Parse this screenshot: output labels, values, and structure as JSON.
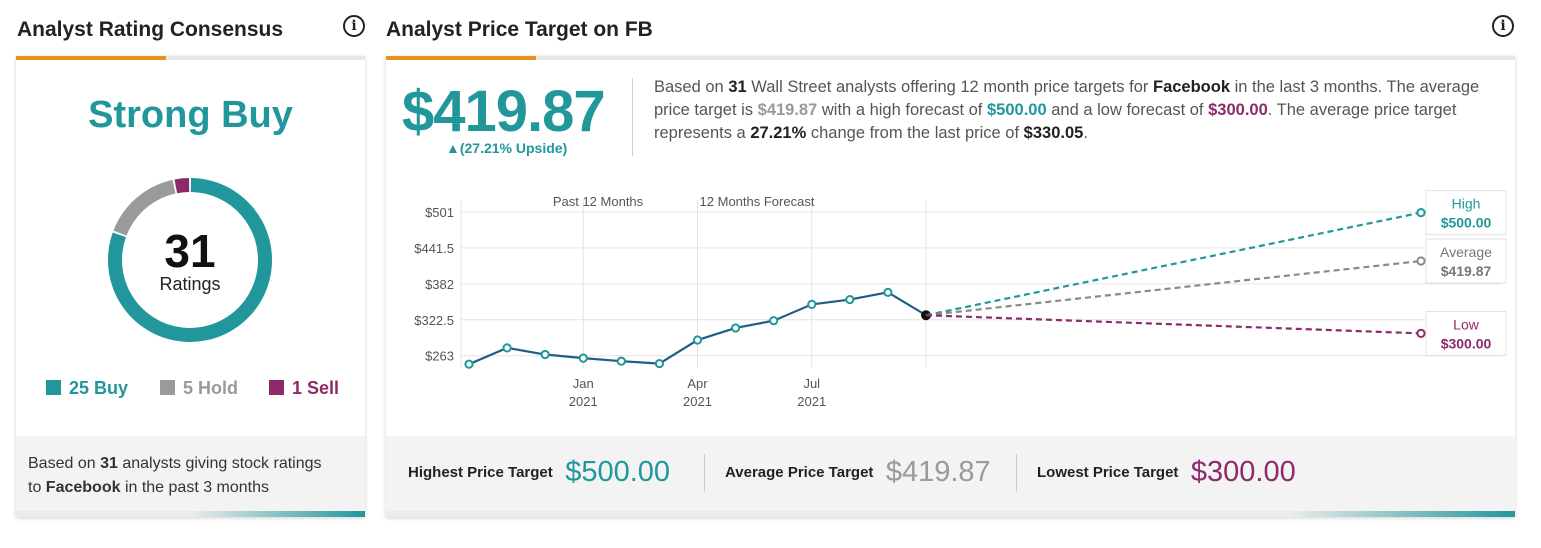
{
  "rating_panel": {
    "title": "Analyst Rating Consensus",
    "info_icon": "info-icon",
    "consensus": "Strong Buy",
    "total": "31",
    "total_label": "Ratings",
    "legend": {
      "buy": "25 Buy",
      "hold": "5 Hold",
      "sell": "1 Sell"
    },
    "counts": {
      "buy": 25,
      "hold": 5,
      "sell": 1
    },
    "colors": {
      "buy": "#21979c",
      "hold": "#9a9a9a",
      "sell": "#8d2a6b",
      "accent": "#e8921e"
    },
    "footer": {
      "prefix": "Based on",
      "count": "31",
      "middle": "analysts giving stock ratings",
      "to": "to",
      "company": "Facebook",
      "suffix": "in the past 3 months"
    }
  },
  "target_panel": {
    "title": "Analyst Price Target on FB",
    "info_icon": "info-icon",
    "price": "$419.87",
    "upside": "▲(27.21% Upside)",
    "summary": {
      "s1": "Based on",
      "analysts": "31",
      "s2": "Wall Street analysts offering 12 month price targets for",
      "company": "Facebook",
      "s3": "in the last 3 months. The average price target is",
      "avg": "$419.87",
      "s4": "with a high forecast of",
      "high": "$500.00",
      "s5": "and a low forecast of",
      "low": "$300.00",
      "s6": ". The average price target represents a",
      "change": "27.21%",
      "s7": "change from the last price of",
      "last": "$330.05",
      "s8": "."
    },
    "footer": {
      "highest_label": "Highest Price Target",
      "highest_value": "$500.00",
      "average_label": "Average Price Target",
      "average_value": "$419.87",
      "lowest_label": "Lowest Price Target",
      "lowest_value": "$300.00"
    }
  },
  "chart_data": {
    "type": "line",
    "section_labels": [
      "Past 12 Months",
      "12 Months Forecast"
    ],
    "y_ticks": [
      "$501",
      "$441.5",
      "$382",
      "$322.5",
      "$263"
    ],
    "y_tick_values": [
      501,
      441.5,
      382,
      322.5,
      263
    ],
    "x_ticks": [
      {
        "month": "Jan",
        "year": "2021"
      },
      {
        "month": "Apr",
        "year": "2021"
      },
      {
        "month": "Jul",
        "year": "2021"
      }
    ],
    "ylim": [
      246,
      501
    ],
    "series": [
      {
        "name": "",
        "values": [
          249,
          276,
          265,
          259,
          254,
          250,
          289,
          309,
          321,
          348,
          356,
          368,
          330.05
        ]
      }
    ],
    "forecast": {
      "start": 330.05,
      "high": {
        "label": "High",
        "value": 500.0,
        "display": "$500.00"
      },
      "average": {
        "label": "Average",
        "value": 419.87,
        "display": "$419.87"
      },
      "low": {
        "label": "Low",
        "value": 300.0,
        "display": "$300.00"
      }
    },
    "colors": {
      "line": "#1f5f86",
      "high": "#21979c",
      "average": "#8a8a8a",
      "low": "#8d2a6b",
      "grid": "#e4e4e4"
    }
  }
}
